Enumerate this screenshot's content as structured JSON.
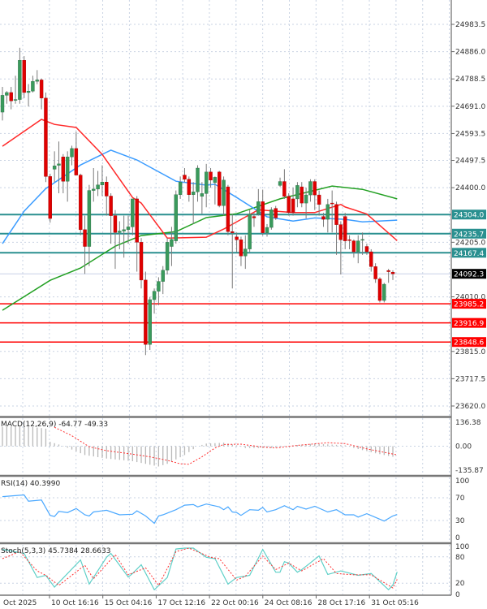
{
  "chart_data": {
    "type": "candlestick",
    "colors": {
      "bull": "#3a9a5c",
      "bear": "#e00000",
      "wick": "#7a7a7a",
      "ma_red": "#ff2a2a",
      "ma_blue": "#3b9cff",
      "ma_green": "#22a022",
      "support_resistance_teal": "#2a9090",
      "support_red": "#ff0000",
      "grid": "#c9d3e3"
    },
    "price_axis": {
      "ylim": [
        23620.0,
        24983.5
      ],
      "ticks": [
        "24983.5",
        "24886.0",
        "24788.5",
        "24691.0",
        "24593.5",
        "24497.5",
        "24400.0",
        "24205.0",
        "24010.0",
        "23815.0",
        "23717.5",
        "23620.0"
      ]
    },
    "x_tick_labels": [
      "Oct 2025",
      "10 Oct 16:16",
      "15 Oct 04:16",
      "17 Oct 12:16",
      "22 Oct 00:16",
      "24 Oct 08:16",
      "28 Oct 17:16",
      "31 Oct 05:16"
    ],
    "current_price": "24092.3",
    "levels": [
      {
        "value": "24304.0",
        "kind": "teal"
      },
      {
        "value": "24235.7",
        "kind": "teal"
      },
      {
        "value": "24167.4",
        "kind": "teal"
      },
      {
        "value": "23985.2",
        "kind": "red"
      },
      {
        "value": "23916.9",
        "kind": "red"
      },
      {
        "value": "23848.6",
        "kind": "red"
      }
    ],
    "candles_ohlc": [
      [
        24670,
        24760,
        24640,
        24730
      ],
      [
        24730,
        24745,
        24700,
        24740
      ],
      [
        24740,
        24760,
        24680,
        24710
      ],
      [
        24712,
        24800,
        24700,
        24715
      ],
      [
        24715,
        24900,
        24700,
        24855
      ],
      [
        24855,
        24870,
        24720,
        24740
      ],
      [
        24740,
        24770,
        24690,
        24745
      ],
      [
        24745,
        24800,
        24740,
        24780
      ],
      [
        24780,
        24820,
        24770,
        24785
      ],
      [
        24785,
        24790,
        24680,
        24720
      ],
      [
        24720,
        24740,
        24420,
        24440
      ],
      [
        24440,
        24450,
        24275,
        24290
      ],
      [
        24466,
        24530,
        24420,
        24478
      ],
      [
        24480,
        24565,
        24380,
        24485
      ],
      [
        24510,
        24520,
        24380,
        24423
      ],
      [
        24423,
        24530,
        24350,
        24510
      ],
      [
        24510,
        24550,
        24480,
        24540
      ],
      [
        24540,
        24600,
        24490,
        24445
      ],
      [
        24445,
        24450,
        24230,
        24250
      ],
      [
        24250,
        24300,
        24092,
        24190
      ],
      [
        24190,
        24410,
        24120,
        24390
      ],
      [
        24390,
        24470,
        24350,
        24395
      ],
      [
        24395,
        24460,
        24370,
        24410
      ],
      [
        24410,
        24480,
        24370,
        24420
      ],
      [
        24420,
        24440,
        24300,
        24370
      ],
      [
        24370,
        24380,
        24200,
        24300
      ],
      [
        24300,
        24320,
        24110,
        24240
      ],
      [
        24240,
        24280,
        24180,
        24245
      ],
      [
        24245,
        24300,
        24150,
        24250
      ],
      [
        24250,
        24300,
        24200,
        24260
      ],
      [
        24260,
        24360,
        24230,
        24360
      ],
      [
        24360,
        24370,
        24100,
        24205
      ],
      [
        24205,
        24220,
        24040,
        24070
      ],
      [
        24070,
        24100,
        23802,
        23840
      ],
      [
        23840,
        24010,
        23820,
        24000
      ],
      [
        24000,
        24040,
        23950,
        24030
      ],
      [
        24030,
        24080,
        23980,
        24065
      ],
      [
        24065,
        24120,
        24020,
        24105
      ],
      [
        24105,
        24220,
        24090,
        24205
      ],
      [
        24190,
        24260,
        24120,
        24215
      ],
      [
        24210,
        24390,
        24200,
        24375
      ],
      [
        24375,
        24440,
        24360,
        24420
      ],
      [
        24445,
        24470,
        24420,
        24430
      ],
      [
        24430,
        24440,
        24350,
        24375
      ],
      [
        24375,
        24420,
        24270,
        24385
      ],
      [
        24385,
        24480,
        24350,
        24470
      ],
      [
        24369,
        24420,
        24306,
        24379
      ],
      [
        24379,
        24485,
        24330,
        24456
      ],
      [
        24456,
        24470,
        24400,
        24427
      ],
      [
        24418,
        24440,
        24340,
        24437
      ],
      [
        24456,
        24460,
        24330,
        24336
      ],
      [
        24336,
        24440,
        24300,
        24427
      ],
      [
        24403,
        24410,
        24230,
        24243
      ],
      [
        24243,
        24306,
        24040,
        24239
      ],
      [
        24224,
        24240,
        24170,
        24214
      ],
      [
        24214,
        24225,
        24120,
        24156
      ],
      [
        24156,
        24230,
        24110,
        24181
      ],
      [
        24181,
        24320,
        24170,
        24306
      ],
      [
        24297,
        24310,
        24260,
        24292
      ],
      [
        24306,
        24395,
        24300,
        24350
      ],
      [
        24350,
        24393,
        24229,
        24239
      ],
      [
        24239,
        24270,
        24225,
        24258
      ],
      [
        24258,
        24330,
        24250,
        24321
      ],
      [
        24326,
        24335,
        24285,
        24292
      ],
      [
        24408,
        24436,
        24403,
        24422
      ],
      [
        24422,
        24466,
        24360,
        24369
      ],
      [
        24369,
        24380,
        24300,
        24311
      ],
      [
        24360,
        24400,
        24300,
        24311
      ],
      [
        24360,
        24420,
        24330,
        24408
      ],
      [
        24403,
        24420,
        24330,
        24345
      ],
      [
        24345,
        24400,
        24290,
        24374
      ],
      [
        24374,
        24430,
        24350,
        24422
      ],
      [
        24422,
        24430,
        24320,
        24374
      ],
      [
        24374,
        24390,
        24300,
        24340
      ],
      [
        24297,
        24310,
        24260,
        24287
      ],
      [
        24287,
        24360,
        24240,
        24340
      ],
      [
        24345,
        24390,
        24240,
        24343
      ],
      [
        24340,
        24350,
        24160,
        24268
      ],
      [
        24268,
        24280,
        24090,
        24214
      ],
      [
        24297,
        24310,
        24180,
        24210
      ],
      [
        24214,
        24230,
        24180,
        24212
      ],
      [
        24210,
        24215,
        24150,
        24171
      ],
      [
        24171,
        24230,
        24130,
        24210
      ],
      [
        24214,
        24240,
        24160,
        24215
      ],
      [
        24190,
        24200,
        24160,
        24171
      ],
      [
        24171,
        24180,
        24100,
        24118
      ],
      [
        24118,
        24130,
        24060,
        24074
      ],
      [
        24074,
        24080,
        23990,
        23997
      ],
      [
        23997,
        24060,
        23990,
        24055
      ],
      [
        24104,
        24110,
        24060,
        24100
      ],
      [
        24098,
        24105,
        24070,
        24092.3
      ]
    ],
    "moving_averages": {
      "red": [
        [
          0,
          24548
        ],
        [
          9,
          24644
        ],
        [
          12,
          24626
        ],
        [
          17,
          24615
        ],
        [
          23,
          24519
        ],
        [
          30,
          24365
        ],
        [
          32,
          24345
        ],
        [
          38,
          24220
        ],
        [
          47,
          24223
        ],
        [
          51,
          24252
        ],
        [
          59,
          24321
        ],
        [
          67,
          24311
        ],
        [
          72,
          24311
        ],
        [
          78,
          24340
        ],
        [
          79,
          24331
        ],
        [
          84,
          24306
        ],
        [
          91,
          24211
        ]
      ],
      "blue": [
        [
          0,
          24200
        ],
        [
          5,
          24316
        ],
        [
          10,
          24397
        ],
        [
          18,
          24481
        ],
        [
          25,
          24534
        ],
        [
          31,
          24499
        ],
        [
          40,
          24423
        ],
        [
          47,
          24409
        ],
        [
          49,
          24412
        ],
        [
          54,
          24365
        ],
        [
          61,
          24296
        ],
        [
          67,
          24281
        ],
        [
          72,
          24292
        ],
        [
          79,
          24287
        ],
        [
          83,
          24278
        ],
        [
          91,
          24284
        ]
      ],
      "green": [
        [
          0,
          23962
        ],
        [
          11,
          24069
        ],
        [
          18,
          24113
        ],
        [
          26,
          24191
        ],
        [
          32,
          24229
        ],
        [
          40,
          24243
        ],
        [
          47,
          24293
        ],
        [
          54,
          24307
        ],
        [
          64,
          24360
        ],
        [
          76,
          24406
        ],
        [
          83,
          24394
        ],
        [
          91,
          24360
        ]
      ]
    },
    "macd": {
      "label": "MACD(12,26,9) -64.77 -49.33",
      "ticks": [
        "136.38",
        "0.00",
        "-135.87"
      ],
      "ylim": [
        -135.87,
        136.38
      ],
      "histogram": [
        [
          0,
          110
        ],
        [
          5,
          115
        ],
        [
          10,
          100
        ],
        [
          11,
          25
        ],
        [
          13,
          10
        ],
        [
          14,
          2
        ],
        [
          19,
          -50
        ],
        [
          24,
          -70
        ],
        [
          30,
          -85
        ],
        [
          36,
          -115
        ],
        [
          38,
          -100
        ],
        [
          42,
          -50
        ],
        [
          45,
          0
        ],
        [
          47,
          15
        ],
        [
          51,
          20
        ],
        [
          54,
          5
        ],
        [
          56,
          -10
        ],
        [
          62,
          -10
        ],
        [
          67,
          5
        ],
        [
          72,
          15
        ],
        [
          79,
          5
        ],
        [
          81,
          -10
        ],
        [
          86,
          -40
        ],
        [
          91,
          -64.77
        ]
      ],
      "signal": [
        [
          12,
          108
        ],
        [
          16,
          60
        ],
        [
          20,
          -3
        ],
        [
          24,
          -25
        ],
        [
          30,
          -45
        ],
        [
          34,
          -60
        ],
        [
          38,
          -80
        ],
        [
          41,
          -100
        ],
        [
          43,
          -102
        ],
        [
          46,
          -60
        ],
        [
          49,
          -10
        ],
        [
          51,
          10
        ],
        [
          55,
          12
        ],
        [
          60,
          -5
        ],
        [
          63,
          -10
        ],
        [
          68,
          5
        ],
        [
          75,
          20
        ],
        [
          79,
          15
        ],
        [
          84,
          -15
        ],
        [
          91,
          -49.33
        ]
      ]
    },
    "rsi": {
      "label": "RSI(14) 40.3990",
      "ticks": [
        "100",
        "70",
        "30",
        "0"
      ],
      "ylim": [
        0,
        100
      ],
      "values": [
        [
          0,
          72
        ],
        [
          5,
          75
        ],
        [
          6,
          64
        ],
        [
          9,
          66
        ],
        [
          11,
          39
        ],
        [
          12,
          37
        ],
        [
          13,
          46
        ],
        [
          15,
          44
        ],
        [
          17,
          51
        ],
        [
          19,
          40
        ],
        [
          20,
          38
        ],
        [
          21,
          45
        ],
        [
          24,
          48
        ],
        [
          27,
          40
        ],
        [
          30,
          41
        ],
        [
          31,
          47
        ],
        [
          33,
          38
        ],
        [
          35,
          25
        ],
        [
          36,
          38
        ],
        [
          37,
          40
        ],
        [
          40,
          49
        ],
        [
          42,
          57
        ],
        [
          44,
          58
        ],
        [
          45,
          54
        ],
        [
          47,
          59
        ],
        [
          50,
          54
        ],
        [
          51,
          49
        ],
        [
          52,
          54
        ],
        [
          53,
          45
        ],
        [
          54,
          44
        ],
        [
          55,
          39
        ],
        [
          57,
          49
        ],
        [
          59,
          48
        ],
        [
          60,
          53
        ],
        [
          61,
          45
        ],
        [
          63,
          49
        ],
        [
          65,
          56
        ],
        [
          67,
          49
        ],
        [
          68,
          55
        ],
        [
          70,
          50
        ],
        [
          72,
          55
        ],
        [
          75,
          45
        ],
        [
          77,
          49
        ],
        [
          79,
          40
        ],
        [
          81,
          40
        ],
        [
          82,
          36
        ],
        [
          84,
          42
        ],
        [
          88,
          29
        ],
        [
          90,
          38
        ],
        [
          91,
          40.399
        ]
      ]
    },
    "stoch": {
      "label": "Stoch(5,3,3) 45.7384 28.6633",
      "ticks": [
        "100",
        "80",
        "20",
        "0"
      ],
      "ylim": [
        0,
        100
      ],
      "k": [
        [
          0,
          97
        ],
        [
          5,
          88
        ],
        [
          8,
          33
        ],
        [
          10,
          38
        ],
        [
          12,
          11
        ],
        [
          18,
          73
        ],
        [
          20,
          18
        ],
        [
          24,
          79
        ],
        [
          25,
          88
        ],
        [
          29,
          34
        ],
        [
          30,
          42
        ],
        [
          32,
          62
        ],
        [
          35,
          5
        ],
        [
          38,
          33
        ],
        [
          40,
          98
        ],
        [
          42,
          100
        ],
        [
          44,
          100
        ],
        [
          47,
          79
        ],
        [
          49,
          76
        ],
        [
          52,
          18
        ],
        [
          54,
          33
        ],
        [
          56,
          36
        ],
        [
          57,
          38
        ],
        [
          60,
          97
        ],
        [
          63,
          45
        ],
        [
          64,
          45
        ],
        [
          65,
          69
        ],
        [
          66,
          66
        ],
        [
          68,
          45
        ],
        [
          69,
          51
        ],
        [
          73,
          82
        ],
        [
          75,
          40
        ],
        [
          78,
          48
        ],
        [
          82,
          38
        ],
        [
          85,
          42
        ],
        [
          89,
          5
        ],
        [
          90,
          16
        ],
        [
          91,
          45.7384
        ]
      ],
      "d": [
        [
          0,
          76
        ],
        [
          4,
          92
        ],
        [
          8,
          48
        ],
        [
          10,
          38
        ],
        [
          13,
          15
        ],
        [
          19,
          61
        ],
        [
          21,
          30
        ],
        [
          26,
          85
        ],
        [
          29,
          39
        ],
        [
          33,
          55
        ],
        [
          36,
          15
        ],
        [
          40,
          92
        ],
        [
          43,
          100
        ],
        [
          48,
          79
        ],
        [
          50,
          76
        ],
        [
          54,
          27
        ],
        [
          56,
          36
        ],
        [
          60,
          82
        ],
        [
          63,
          51
        ],
        [
          66,
          66
        ],
        [
          69,
          48
        ],
        [
          74,
          76
        ],
        [
          77,
          42
        ],
        [
          81,
          39
        ],
        [
          85,
          39
        ],
        [
          90,
          9
        ],
        [
          91,
          28.6633
        ]
      ]
    }
  }
}
